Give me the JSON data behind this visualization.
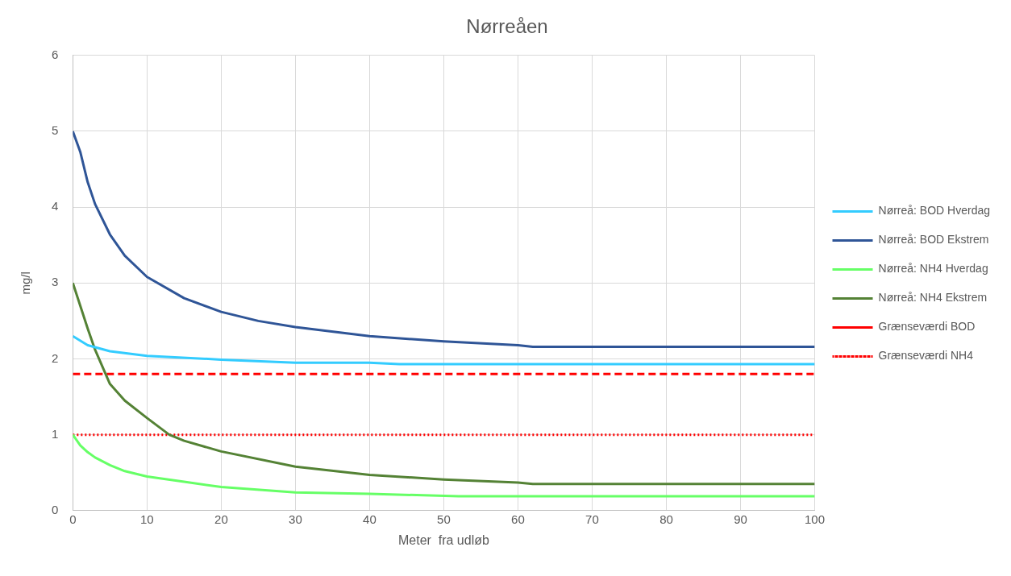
{
  "chart_data": {
    "type": "line",
    "title": "Nørreåen",
    "xlabel": "Meter  fra udløb",
    "ylabel": "mg/l",
    "xlim": [
      0,
      100
    ],
    "xticks": [
      0,
      10,
      20,
      30,
      40,
      50,
      60,
      70,
      80,
      90,
      100
    ],
    "ylim": [
      0,
      6
    ],
    "yticks": [
      0,
      1,
      2,
      3,
      4,
      5,
      6
    ],
    "grid": true,
    "legend": "right",
    "marker": "none",
    "line_style": "solid",
    "series": [
      {
        "name": "Nørreå: BOD Hverdag",
        "color": "#33ccff",
        "x": [
          0,
          2,
          5,
          10,
          20,
          30,
          40,
          44,
          60,
          100
        ],
        "values": [
          2.3,
          2.18,
          2.1,
          2.04,
          1.99,
          1.95,
          1.95,
          1.93,
          1.93,
          1.93
        ]
      },
      {
        "name": "Nørreå: BOD Ekstrem",
        "color": "#2f5597",
        "x": [
          0,
          1,
          2,
          3,
          5,
          7,
          10,
          15,
          20,
          25,
          30,
          40,
          50,
          60,
          62,
          100
        ],
        "values": [
          5.0,
          4.73,
          4.33,
          4.04,
          3.64,
          3.36,
          3.08,
          2.8,
          2.62,
          2.5,
          2.42,
          2.3,
          2.23,
          2.18,
          2.16,
          2.16
        ]
      },
      {
        "name": "Nørreå: NH4 Hverdag",
        "color": "#66ff66",
        "x": [
          0,
          1,
          2,
          3,
          5,
          7,
          10,
          15,
          20,
          30,
          40,
          52,
          100
        ],
        "values": [
          1.0,
          0.86,
          0.77,
          0.7,
          0.6,
          0.52,
          0.45,
          0.38,
          0.31,
          0.24,
          0.22,
          0.19,
          0.19
        ]
      },
      {
        "name": "Nørreå: NH4 Ekstrem",
        "color": "#548235",
        "x": [
          0,
          1,
          2,
          3,
          5,
          7,
          10,
          13,
          15,
          20,
          30,
          40,
          50,
          60,
          62,
          100
        ],
        "values": [
          3.0,
          2.7,
          2.4,
          2.12,
          1.67,
          1.45,
          1.22,
          1.0,
          0.92,
          0.78,
          0.58,
          0.47,
          0.41,
          0.37,
          0.35,
          0.35
        ]
      }
    ],
    "ref_lines": [
      {
        "axis": "y",
        "value": 1.8,
        "label": "Grænseværdi BOD",
        "color": "#ff0000",
        "line_style": "dashed"
      },
      {
        "axis": "y",
        "value": 1,
        "label": "Grænseværdi NH4",
        "color": "#ff0000",
        "line_style": "dotted"
      }
    ]
  }
}
